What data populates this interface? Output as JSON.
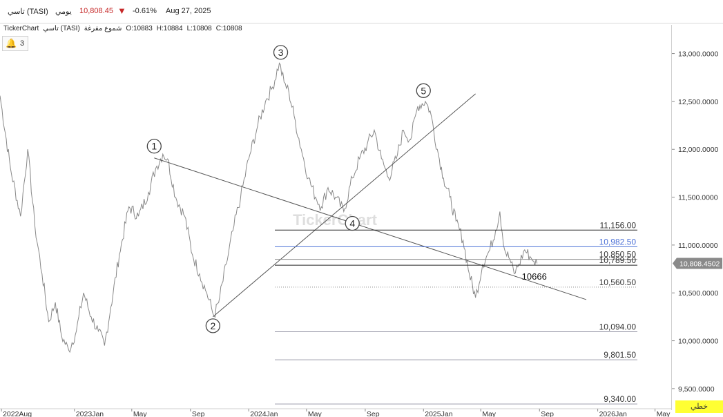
{
  "header": {
    "symbol": "تاسي (TASI)",
    "period": "يومي",
    "price": "10,808.45",
    "change_pct": "-0.61%",
    "date": "Aug 27, 2025",
    "down_arrow_icon": "triangle-down-icon"
  },
  "info_line": {
    "source": "TickerChart",
    "name": "تاسي (TASI)",
    "chart_type": "شموع مفرغة",
    "open": "O:10883",
    "high": "H:10884",
    "low": "L:10808",
    "close": "C:10808"
  },
  "alerts": {
    "icon": "bell-icon",
    "count": "3"
  },
  "watermark": "TickerChart",
  "linear_button": "خطي",
  "colors": {
    "series": "#888888",
    "down": "#c62828",
    "blue_level": "#4a6fd6",
    "accent_button": "#ffff33"
  },
  "chart_data": {
    "type": "line",
    "x_tick_labels": [
      "2022Aug",
      "2023Jan",
      "May",
      "Sep",
      "2024Jan",
      "May",
      "Sep",
      "2025Jan",
      "May",
      "Sep",
      "2026Jan",
      "May"
    ],
    "y_ticks": [
      9500,
      10000,
      10500,
      11000,
      11500,
      12000,
      12500,
      13000
    ],
    "y_tick_labels": [
      "9,500.0000",
      "10,000.0000",
      "10,500.0000",
      "11,000.0000",
      "11,500.0000",
      "12,000.0000",
      "12,500.0000",
      "13,000.0000"
    ],
    "ylim": [
      9290,
      13300
    ],
    "xlim": [
      "2022-07-29",
      "2026-06-01"
    ],
    "last_price_label": "10,808.4502",
    "last_price": 10808.45,
    "series": [
      {
        "x": [
          "2022-07-29",
          "2022-08-20",
          "2022-09-10",
          "2022-09-25",
          "2022-10-10",
          "2022-10-25",
          "2022-11-08",
          "2022-11-22",
          "2022-12-05",
          "2022-12-20",
          "2023-01-05",
          "2023-01-20",
          "2023-02-05",
          "2023-02-20",
          "2023-03-05",
          "2023-03-18",
          "2023-04-05",
          "2023-04-25",
          "2023-05-15",
          "2023-06-05",
          "2023-06-20",
          "2023-07-05",
          "2023-07-15",
          "2023-08-01",
          "2023-08-20",
          "2023-09-05",
          "2023-09-20",
          "2023-10-05",
          "2023-10-20",
          "2023-10-30",
          "2023-11-15",
          "2023-12-01",
          "2023-12-15",
          "2024-01-01",
          "2024-01-20",
          "2024-02-05",
          "2024-02-20",
          "2024-03-05",
          "2024-03-15",
          "2024-03-25",
          "2024-04-05",
          "2024-04-20",
          "2024-05-05",
          "2024-05-20",
          "2024-06-01",
          "2024-06-15",
          "2024-07-01",
          "2024-07-18",
          "2024-08-05",
          "2024-08-20",
          "2024-09-05",
          "2024-09-20",
          "2024-10-05",
          "2024-10-20",
          "2024-11-05",
          "2024-11-20",
          "2024-12-05",
          "2024-12-20",
          "2025-01-05",
          "2025-01-15",
          "2025-01-30",
          "2025-02-12",
          "2025-02-25",
          "2025-03-10",
          "2025-03-25",
          "2025-04-07",
          "2025-04-20",
          "2025-05-05",
          "2025-05-20",
          "2025-06-01",
          "2025-06-10",
          "2025-06-20",
          "2025-07-01",
          "2025-07-10",
          "2025-07-20",
          "2025-08-01",
          "2025-08-12",
          "2025-08-20",
          "2025-08-27"
        ],
        "y": [
          12560,
          11800,
          11300,
          12000,
          11200,
          10700,
          10200,
          10400,
          10050,
          9900,
          10100,
          10500,
          10250,
          10100,
          9950,
          10350,
          10900,
          11400,
          11300,
          11550,
          11800,
          11950,
          11900,
          11500,
          11300,
          10900,
          10700,
          10500,
          10260,
          10400,
          10800,
          11200,
          11500,
          11900,
          12250,
          12500,
          12650,
          12900,
          12700,
          12600,
          12350,
          12000,
          11700,
          11500,
          11400,
          11600,
          11500,
          11350,
          11700,
          11900,
          12050,
          12200,
          11900,
          11700,
          11900,
          12200,
          12100,
          12450,
          12500,
          12400,
          12000,
          11700,
          11500,
          11250,
          11050,
          10700,
          10450,
          10800,
          10950,
          11150,
          11350,
          10950,
          10850,
          10700,
          10800,
          10950,
          10880,
          10830,
          10808
        ]
      }
    ],
    "annotations": {
      "wave_labels": [
        "1",
        "2",
        "3",
        "4",
        "5"
      ],
      "wave_points": [
        {
          "label": "1",
          "x": "2023-06-17",
          "y": 11910
        },
        {
          "label": "2",
          "x": "2023-10-18",
          "y": 10250
        },
        {
          "label": "3",
          "x": "2024-03-08",
          "y": 12890
        },
        {
          "label": "4",
          "x": "2024-08-05",
          "y": 11320
        },
        {
          "label": "5",
          "x": "2025-01-01",
          "y": 12490
        }
      ],
      "trendlines": [
        {
          "from": {
            "x": "2023-06-17",
            "y": 11910
          },
          "to": {
            "x": "2025-12-08",
            "y": 10430
          }
        },
        {
          "from": {
            "x": "2023-10-18",
            "y": 10250
          },
          "to": {
            "x": "2025-04-20",
            "y": 12580
          }
        }
      ],
      "levels": [
        {
          "label": "11,156.00",
          "value": 11156,
          "style": "solid",
          "color": "#222222"
        },
        {
          "label": "10,982.50",
          "value": 10982.5,
          "style": "solid",
          "color": "#4a6fd6"
        },
        {
          "label": "10,850.50",
          "value": 10850.5,
          "style": "solid",
          "color": "#888888"
        },
        {
          "label": "10,789.50",
          "value": 10789.5,
          "style": "solid",
          "color": "#222222"
        },
        {
          "label": "10,560.50",
          "value": 10560.5,
          "style": "dotted",
          "color": "#888888"
        },
        {
          "label": "10,094.00",
          "value": 10094,
          "style": "solid",
          "color": "#9a9aaa"
        },
        {
          "label": "9,801.50",
          "value": 9801.5,
          "style": "solid",
          "color": "#9a9aaa"
        },
        {
          "label": "9,340.00",
          "value": 9340,
          "style": "solid",
          "color": "#9a9aaa"
        }
      ],
      "price_note": {
        "label": "10666",
        "x": "2025-07-26",
        "y": 10640
      }
    }
  }
}
